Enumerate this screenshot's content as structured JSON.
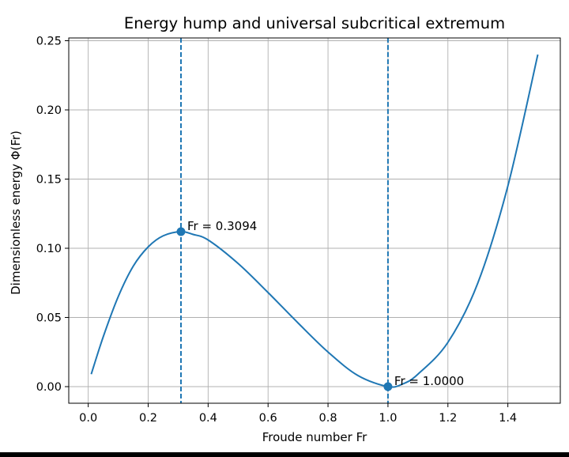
{
  "chart_data": {
    "type": "line",
    "title": "Energy hump and universal subcritical extremum",
    "xlabel": "Froude number Fr",
    "ylabel": "Dimensionless energy Φ(Fr)",
    "xlim": [
      -0.065,
      1.575
    ],
    "ylim": [
      -0.012,
      0.252
    ],
    "xticks": [
      0.0,
      0.2,
      0.4,
      0.6,
      0.8,
      1.0,
      1.2,
      1.4
    ],
    "xtick_labels": [
      "0.0",
      "0.2",
      "0.4",
      "0.6",
      "0.8",
      "1.0",
      "1.2",
      "1.4"
    ],
    "yticks": [
      0.0,
      0.05,
      0.1,
      0.15,
      0.2,
      0.25
    ],
    "ytick_labels": [
      "0.00",
      "0.05",
      "0.10",
      "0.15",
      "0.20",
      "0.25"
    ],
    "grid": true,
    "colors": {
      "series": "#1f77b4",
      "grid": "#b0b0b0",
      "axes": "#000000"
    },
    "series": [
      {
        "name": "Φ(Fr)",
        "x": [
          0.01,
          0.05,
          0.1,
          0.15,
          0.2,
          0.25,
          0.3094,
          0.35,
          0.4,
          0.5,
          0.6,
          0.7,
          0.8,
          0.9,
          1.0,
          1.05,
          1.1,
          1.2,
          1.3,
          1.4,
          1.5
        ],
        "y": [
          0.009,
          0.036,
          0.065,
          0.087,
          0.101,
          0.109,
          0.112,
          0.11,
          0.106,
          0.089,
          0.068,
          0.046,
          0.025,
          0.008,
          0.0,
          0.002,
          0.009,
          0.032,
          0.075,
          0.145,
          0.24
        ]
      }
    ],
    "vlines": [
      {
        "x": 0.3094,
        "style": "dashed"
      },
      {
        "x": 1.0,
        "style": "dashed"
      }
    ],
    "markers": [
      {
        "x": 0.3094,
        "y": 0.112,
        "label": "Fr = 0.3094"
      },
      {
        "x": 1.0,
        "y": 0.0,
        "label": "Fr = 1.0000"
      }
    ]
  }
}
